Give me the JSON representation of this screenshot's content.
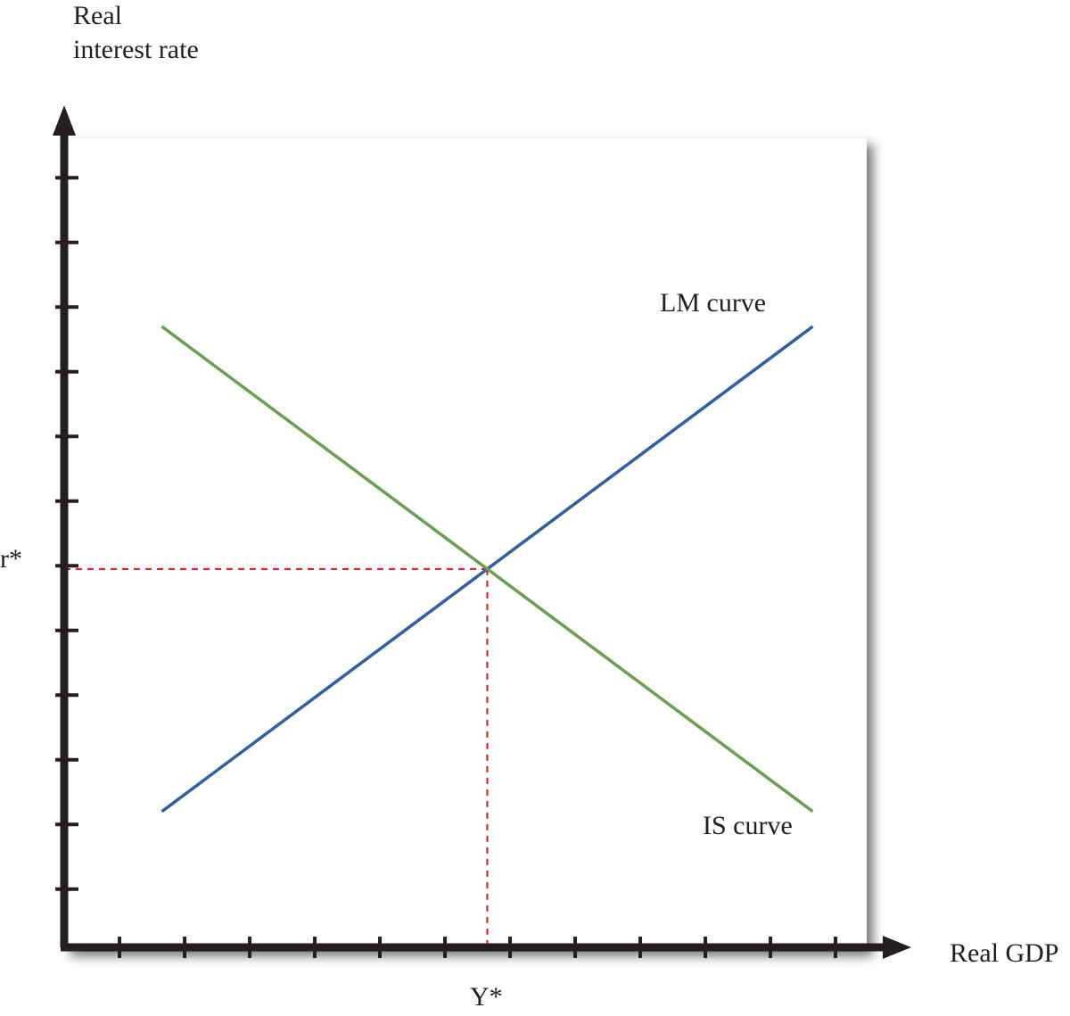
{
  "chart_data": {
    "type": "line",
    "y_axis_label": [
      "Real",
      "interest rate"
    ],
    "x_axis_label": "Real GDP",
    "y_star_label": "Y*",
    "r_star_label": "r*",
    "x_tick_count": 12,
    "y_tick_count": 12,
    "grid": false,
    "series": [
      {
        "name": "LM curve",
        "color": "#2e5f9e",
        "points": [
          [
            1.5,
            2.1
          ],
          [
            11.5,
            9.6
          ]
        ]
      },
      {
        "name": "IS curve",
        "color": "#6a9f4f",
        "points": [
          [
            1.5,
            9.6
          ],
          [
            11.5,
            2.1
          ]
        ]
      }
    ],
    "equilibrium": {
      "x": 6.5,
      "y": 5.85
    },
    "guide_color": "#d7191c",
    "axis_color": "#231f20",
    "xlim": [
      0,
      12.5
    ],
    "ylim": [
      0,
      13
    ]
  }
}
